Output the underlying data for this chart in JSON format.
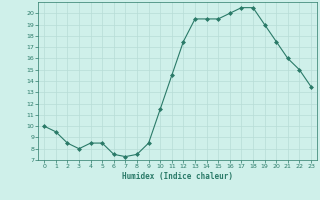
{
  "x": [
    0,
    1,
    2,
    3,
    4,
    5,
    6,
    7,
    8,
    9,
    10,
    11,
    12,
    13,
    14,
    15,
    16,
    17,
    18,
    19,
    20,
    21,
    22,
    23
  ],
  "y": [
    10,
    9.5,
    8.5,
    8.0,
    8.5,
    8.5,
    7.5,
    7.3,
    7.5,
    8.5,
    11.5,
    14.5,
    17.5,
    19.5,
    19.5,
    19.5,
    20.0,
    20.5,
    20.5,
    19.0,
    17.5,
    16.0,
    15.0,
    13.5
  ],
  "xlabel": "Humidex (Indice chaleur)",
  "ylim": [
    7,
    21
  ],
  "xlim": [
    -0.5,
    23.5
  ],
  "yticks": [
    7,
    8,
    9,
    10,
    11,
    12,
    13,
    14,
    15,
    16,
    17,
    18,
    19,
    20
  ],
  "xticks": [
    0,
    1,
    2,
    3,
    4,
    5,
    6,
    7,
    8,
    9,
    10,
    11,
    12,
    13,
    14,
    15,
    16,
    17,
    18,
    19,
    20,
    21,
    22,
    23
  ],
  "line_color": "#2a7a68",
  "marker_color": "#2a7a68",
  "bg_color": "#cff0ea",
  "grid_color": "#b8ddd7",
  "tick_color": "#2a7a68",
  "xlabel_color": "#2a7a68"
}
